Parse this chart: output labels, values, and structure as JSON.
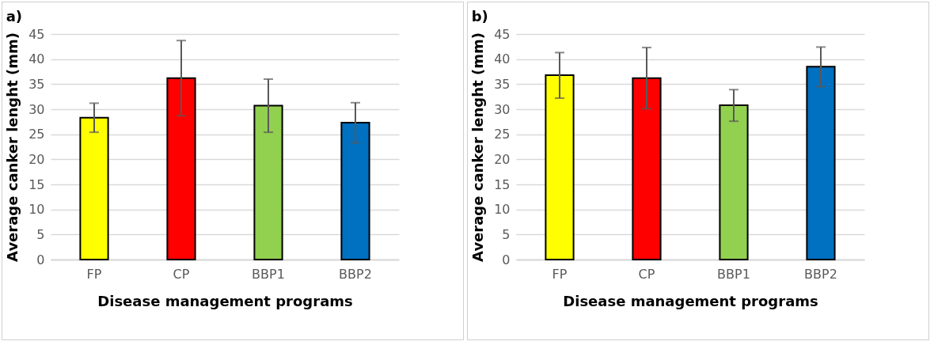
{
  "chart_data": [
    {
      "type": "bar",
      "title": "a)",
      "xlabel": "Disease management programs",
      "ylabel": "Average canker lenght (mm)",
      "categories": [
        "FP",
        "CP",
        "BBP1",
        "BBP2"
      ],
      "values": [
        28.3,
        36.2,
        30.7,
        27.3
      ],
      "colors": [
        "#ffff00",
        "#ff0000",
        "#92d050",
        "#0070c0"
      ],
      "errors": [
        [
          25.4,
          31.2
        ],
        [
          28.7,
          43.7
        ],
        [
          25.4,
          36.0
        ],
        [
          23.3,
          31.3
        ]
      ],
      "ylim": [
        0,
        45
      ],
      "yticks": [
        0,
        5,
        10,
        15,
        20,
        25,
        30,
        35,
        40,
        45
      ],
      "grid": "y"
    },
    {
      "type": "bar",
      "title": "b)",
      "xlabel": "Disease management programs",
      "ylabel": "Average canker lenght (mm)",
      "categories": [
        "FP",
        "CP",
        "BBP1",
        "BBP2"
      ],
      "values": [
        36.8,
        36.2,
        30.8,
        38.5
      ],
      "colors": [
        "#ffff00",
        "#ff0000",
        "#92d050",
        "#0070c0"
      ],
      "errors": [
        [
          32.2,
          41.3
        ],
        [
          30.1,
          42.3
        ],
        [
          27.6,
          33.9
        ],
        [
          34.5,
          42.4
        ]
      ],
      "ylim": [
        0,
        45
      ],
      "yticks": [
        0,
        5,
        10,
        15,
        20,
        25,
        30,
        35,
        40,
        45
      ],
      "grid": "y"
    }
  ]
}
